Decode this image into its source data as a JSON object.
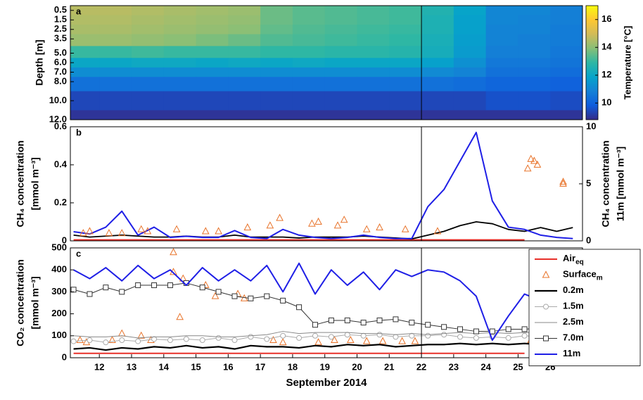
{
  "chart_data": [
    {
      "type": "heatmap",
      "panel_label": "a",
      "ylabel": "Depth [m]",
      "x": [
        11.5,
        12.5,
        13.5,
        14.5,
        15.5,
        16.5,
        17.5,
        18.5,
        19.5,
        20.5,
        21.5,
        22.5,
        23.5,
        24.5,
        25.5,
        26.5
      ],
      "depths": [
        0.5,
        1.5,
        2.5,
        3.5,
        5,
        6,
        7,
        8,
        10,
        12
      ],
      "values": [
        [
          14.6,
          14.6,
          14.5,
          14.4,
          14.3,
          14.2,
          13.6,
          13.4,
          13.3,
          13.2,
          13.1,
          12.6,
          11.9,
          11.0,
          11.0,
          10.8
        ],
        [
          14.5,
          14.5,
          14.4,
          14.3,
          14.2,
          14.1,
          13.6,
          13.4,
          13.3,
          13.2,
          13.1,
          12.5,
          11.8,
          11.0,
          10.9,
          10.8
        ],
        [
          14.4,
          14.4,
          14.3,
          14.2,
          14.1,
          14.0,
          13.5,
          13.3,
          13.2,
          13.1,
          13.0,
          12.5,
          11.8,
          10.9,
          10.9,
          10.7
        ],
        [
          14.2,
          14.2,
          14.1,
          14.0,
          13.8,
          13.6,
          13.3,
          13.2,
          13.1,
          13.0,
          12.9,
          12.4,
          11.7,
          10.9,
          10.8,
          10.7
        ],
        [
          13.0,
          13.0,
          13.1,
          13.0,
          13.0,
          13.0,
          12.9,
          12.9,
          12.8,
          12.8,
          12.7,
          12.3,
          11.6,
          10.8,
          10.8,
          10.6
        ],
        [
          12.0,
          12.0,
          12.1,
          12.1,
          12.0,
          12.1,
          12.0,
          12.1,
          12.0,
          12.0,
          12.0,
          11.8,
          11.3,
          10.6,
          10.6,
          10.5
        ],
        [
          11.2,
          11.2,
          11.2,
          11.2,
          11.2,
          11.2,
          11.2,
          11.2,
          11.2,
          11.2,
          11.2,
          11.1,
          10.9,
          10.4,
          10.4,
          10.3
        ],
        [
          10.4,
          10.4,
          10.4,
          10.4,
          10.4,
          10.4,
          10.4,
          10.4,
          10.4,
          10.4,
          10.4,
          10.4,
          10.3,
          10.1,
          10.1,
          10.0
        ],
        [
          9.4,
          9.4,
          9.4,
          9.4,
          9.4,
          9.4,
          9.4,
          9.4,
          9.4,
          9.4,
          9.4,
          9.4,
          9.4,
          9.6,
          9.6,
          9.5
        ],
        [
          9.0,
          9.0,
          9.0,
          9.0,
          9.0,
          9.0,
          9.0,
          9.0,
          9.0,
          9.0,
          9.0,
          9.0,
          9.0,
          9.0,
          9.0,
          9.0
        ]
      ],
      "xlim": [
        11.1,
        27
      ],
      "ylim": [
        0,
        12
      ],
      "y_reversed": true,
      "yticks": [
        0.5,
        1.5,
        2.5,
        3.5,
        {
          "value": 5,
          "label": "5.0"
        },
        {
          "value": 6,
          "label": "6.0"
        },
        {
          "value": 7,
          "label": "7.0"
        },
        {
          "value": 8,
          "label": "8.0"
        },
        {
          "value": 10,
          "label": "10.0"
        },
        {
          "value": 12,
          "label": "12.0"
        }
      ],
      "colorbar": {
        "label": "Temperature [°C]",
        "lim": [
          8.8,
          17
        ],
        "ticks": [
          10,
          12,
          14,
          16
        ],
        "colormap": [
          "#352a87",
          "#0f5cdd",
          "#1481d6",
          "#06a4ca",
          "#2eb7a4",
          "#87bf77",
          "#d1bb59",
          "#fec832",
          "#f9fb0e"
        ]
      },
      "vlines": [
        22
      ]
    },
    {
      "type": "line",
      "panel_label": "b",
      "ylabel": [
        "CH₄ concentration",
        "[mmol m⁻³]"
      ],
      "y2label": [
        "CH₄ concentration",
        "11m [mmol m⁻³]"
      ],
      "x": [
        11.2,
        11.7,
        12.2,
        12.7,
        13.2,
        13.7,
        14.2,
        14.7,
        15.2,
        15.7,
        16.2,
        16.7,
        17.2,
        17.7,
        18.2,
        18.7,
        19.2,
        19.7,
        20.2,
        20.7,
        21.2,
        21.7,
        22.2,
        22.7,
        23.2,
        23.7,
        24.2,
        24.7,
        25.2,
        25.7,
        26.2,
        26.7
      ],
      "series": [
        {
          "color": "#e8302a",
          "width": 2,
          "values": [
            0.005,
            0.005,
            0.005,
            0.005,
            0.005,
            0.005,
            0.005,
            0.005,
            0.005,
            0.005,
            0.005,
            0.005,
            0.005,
            0.005,
            0.005,
            0.005,
            0.005,
            0.005,
            0.005,
            0.005,
            0.005,
            0.005,
            0.005,
            0.005,
            0.005,
            0.005,
            0.005,
            0.005,
            0.005,
            null,
            null,
            null
          ]
        },
        {
          "color": "#000000",
          "width": 1.8,
          "values": [
            0.03,
            0.02,
            0.025,
            0.03,
            0.025,
            0.02,
            0.02,
            0.025,
            0.02,
            0.02,
            0.03,
            0.02,
            0.02,
            0.02,
            0.015,
            0.02,
            0.02,
            0.02,
            0.025,
            0.02,
            0.015,
            0.01,
            0.03,
            0.05,
            0.08,
            0.1,
            0.09,
            0.06,
            0.05,
            0.07,
            0.05,
            0.07
          ]
        },
        {
          "color": "#1f1fe6",
          "width": 2,
          "axis": "y2",
          "values": [
            0.8,
            0.6,
            1.2,
            2.6,
            0.5,
            1.2,
            0.3,
            0.4,
            0.3,
            0.3,
            0.9,
            0.3,
            0.2,
            1.0,
            0.5,
            0.3,
            0.2,
            0.3,
            0.5,
            0.3,
            0.2,
            0.2,
            3.0,
            4.5,
            7.0,
            9.5,
            3.5,
            1.2,
            1.0,
            0.5,
            0.3,
            0.2
          ]
        },
        {
          "color": "#e8732a",
          "marker": "triangle",
          "line": false,
          "x": [
            11.5,
            11.7,
            12.3,
            12.7,
            13.3,
            13.5,
            14.4,
            15.3,
            15.7,
            16.6,
            17.3,
            17.6,
            18.6,
            18.8,
            19.4,
            19.6,
            20.3,
            20.7,
            21.5,
            22.5,
            25.3,
            25.4,
            25.5,
            25.6,
            26.4,
            26.4
          ],
          "values": [
            0.04,
            0.05,
            0.04,
            0.04,
            0.06,
            0.05,
            0.06,
            0.05,
            0.05,
            0.07,
            0.08,
            0.12,
            0.09,
            0.1,
            0.08,
            0.11,
            0.06,
            0.07,
            0.06,
            0.05,
            0.38,
            0.43,
            0.42,
            0.4,
            0.3,
            0.31
          ]
        }
      ],
      "xlim": [
        11.1,
        27
      ],
      "ylim": [
        0,
        0.6
      ],
      "yticks": [
        0,
        0.2,
        0.4,
        0.6
      ],
      "y2lim": [
        0,
        10
      ],
      "y2ticks": [
        0,
        5,
        10
      ],
      "vlines": [
        22
      ]
    },
    {
      "type": "line",
      "panel_label": "c",
      "ylabel": [
        "CO₂ concentration",
        "[mmol m⁻³]"
      ],
      "xlabel": "September 2014",
      "x": [
        11.2,
        11.7,
        12.2,
        12.7,
        13.2,
        13.7,
        14.2,
        14.7,
        15.2,
        15.7,
        16.2,
        16.7,
        17.2,
        17.7,
        18.2,
        18.7,
        19.2,
        19.7,
        20.2,
        20.7,
        21.2,
        21.7,
        22.2,
        22.7,
        23.2,
        23.7,
        24.2,
        24.7,
        25.2,
        25.7,
        26.2,
        26.7
      ],
      "series": [
        {
          "name": "Air",
          "name_sub": "eq",
          "color": "#e8302a",
          "width": 2,
          "values": [
            20,
            20,
            20,
            20,
            20,
            20,
            20,
            20,
            20,
            20,
            20,
            20,
            20,
            20,
            20,
            20,
            20,
            20,
            20,
            20,
            20,
            20,
            20,
            20,
            20,
            20,
            20,
            20,
            20,
            null,
            null,
            null
          ]
        },
        {
          "name": "Surface",
          "name_sub": "m",
          "color": "#e8732a",
          "marker": "triangle",
          "line": false,
          "x": [
            11.4,
            11.6,
            12.4,
            12.7,
            13.3,
            13.6,
            14.3,
            14.3,
            14.5,
            14.6,
            15.3,
            15.6,
            16.3,
            16.5,
            17.4,
            17.7,
            18.8,
            19.3,
            19.8,
            20.3,
            20.8,
            21.4,
            21.8,
            25.4,
            25.6,
            26.4
          ],
          "values": [
            80,
            70,
            80,
            110,
            100,
            80,
            480,
            390,
            185,
            360,
            330,
            280,
            290,
            270,
            80,
            70,
            70,
            80,
            80,
            75,
            75,
            75,
            75,
            80,
            70,
            70
          ]
        },
        {
          "name": "0.2m",
          "color": "#000000",
          "width": 2.2,
          "values": [
            40,
            45,
            35,
            45,
            40,
            50,
            45,
            55,
            45,
            50,
            40,
            55,
            50,
            50,
            45,
            55,
            50,
            60,
            55,
            60,
            50,
            55,
            60,
            60,
            65,
            60,
            65,
            60,
            65,
            60,
            70,
            70
          ]
        },
        {
          "name": "1.5m",
          "color": "#aaaaaa",
          "width": 1,
          "marker": "circle",
          "values": [
            75,
            80,
            70,
            80,
            75,
            85,
            80,
            85,
            80,
            90,
            80,
            95,
            85,
            100,
            90,
            100,
            95,
            105,
            100,
            105,
            95,
            100,
            100,
            105,
            95,
            90,
            95,
            90,
            100,
            95,
            105,
            100
          ]
        },
        {
          "name": "2.5m",
          "color": "#888888",
          "width": 1,
          "values": [
            100,
            95,
            95,
            100,
            90,
            95,
            95,
            100,
            100,
            95,
            95,
            100,
            105,
            120,
            110,
            115,
            115,
            115,
            110,
            110,
            105,
            110,
            105,
            110,
            115,
            110,
            115,
            110,
            115,
            115,
            120,
            120
          ]
        },
        {
          "name": "7.0m",
          "color": "#333333",
          "width": 1,
          "marker": "square",
          "values": [
            310,
            290,
            320,
            300,
            330,
            330,
            330,
            340,
            320,
            300,
            280,
            270,
            280,
            260,
            230,
            150,
            170,
            170,
            160,
            170,
            175,
            160,
            150,
            140,
            130,
            120,
            120,
            130,
            130,
            135,
            145,
            150
          ]
        },
        {
          "name": "11m",
          "color": "#1f1fe6",
          "width": 2,
          "values": [
            400,
            360,
            410,
            350,
            420,
            360,
            400,
            330,
            410,
            350,
            400,
            350,
            420,
            300,
            430,
            290,
            400,
            330,
            390,
            310,
            400,
            370,
            400,
            390,
            350,
            280,
            80,
            190,
            290,
            260,
            270,
            270
          ]
        }
      ],
      "xlim": [
        11.1,
        27
      ],
      "xticks": [
        12,
        13,
        14,
        15,
        16,
        17,
        18,
        19,
        20,
        21,
        22,
        23,
        24,
        25,
        26
      ],
      "ylim": [
        0,
        500
      ],
      "yticks": [
        0,
        100,
        200,
        300,
        400,
        500
      ],
      "legend": "right",
      "vlines": [
        22
      ]
    }
  ]
}
